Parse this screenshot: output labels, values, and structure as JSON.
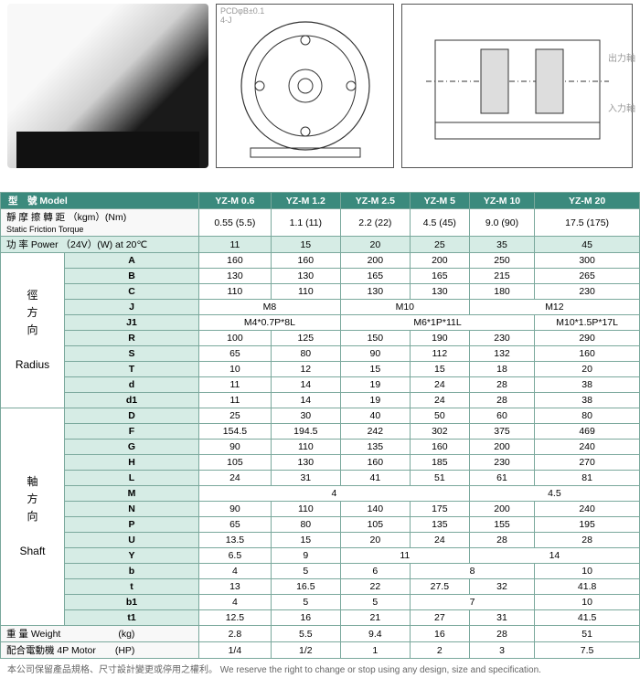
{
  "diagram_labels": {
    "out_shaft": "出力軸",
    "in_shaft": "入力軸",
    "pcd": "PCDφB±0.1\n4-J"
  },
  "header": {
    "model_label": "型　號  Model",
    "models": [
      "YZ-M 0.6",
      "YZ-M 1.2",
      "YZ-M 2.5",
      "YZ-M 5",
      "YZ-M 10",
      "YZ-M 20"
    ]
  },
  "torque_row": {
    "label": "靜 摩 擦 轉 距 （kgm）(Nm)",
    "sub": "Static Friction Torque",
    "vals": [
      "0.55 (5.5)",
      "1.1 (11)",
      "2.2 (22)",
      "4.5 (45)",
      "9.0 (90)",
      "17.5 (175)"
    ]
  },
  "power_row": {
    "label": "功 率  Power （24V）(W) at 20℃",
    "vals": [
      "11",
      "15",
      "20",
      "25",
      "35",
      "45"
    ]
  },
  "radius": {
    "side_label_cn": "徑\n方\n向",
    "side_label_en": "Radius",
    "rows": [
      {
        "p": "A",
        "v": [
          "160",
          "160",
          "200",
          "200",
          "250",
          "300"
        ]
      },
      {
        "p": "B",
        "v": [
          "130",
          "130",
          "165",
          "165",
          "215",
          "265"
        ]
      },
      {
        "p": "C",
        "v": [
          "110",
          "110",
          "130",
          "130",
          "180",
          "230"
        ]
      },
      {
        "p": "J",
        "spans": [
          {
            "t": "M8",
            "c": 2
          },
          {
            "t": "M10",
            "c": 2
          },
          {
            "t": "M12",
            "c": 2
          }
        ]
      },
      {
        "p": "J1",
        "spans": [
          {
            "t": "M4*0.7P*8L",
            "c": 2
          },
          {
            "t": "M6*1P*11L",
            "c": 3
          },
          {
            "t": "M10*1.5P*17L",
            "c": 1
          }
        ]
      },
      {
        "p": "R",
        "v": [
          "100",
          "125",
          "150",
          "190",
          "230",
          "290"
        ]
      },
      {
        "p": "S",
        "v": [
          "65",
          "80",
          "90",
          "112",
          "132",
          "160"
        ]
      },
      {
        "p": "T",
        "v": [
          "10",
          "12",
          "15",
          "15",
          "18",
          "20"
        ]
      },
      {
        "p": "d",
        "v": [
          "11",
          "14",
          "19",
          "24",
          "28",
          "38"
        ]
      },
      {
        "p": "d1",
        "v": [
          "11",
          "14",
          "19",
          "24",
          "28",
          "38"
        ]
      }
    ]
  },
  "shaft": {
    "side_label_cn": "軸\n方\n向",
    "side_label_en": "Shaft",
    "rows": [
      {
        "p": "D",
        "v": [
          "25",
          "30",
          "40",
          "50",
          "60",
          "80"
        ]
      },
      {
        "p": "F",
        "v": [
          "154.5",
          "194.5",
          "242",
          "302",
          "375",
          "469"
        ]
      },
      {
        "p": "G",
        "v": [
          "90",
          "110",
          "135",
          "160",
          "200",
          "240"
        ]
      },
      {
        "p": "H",
        "v": [
          "105",
          "130",
          "160",
          "185",
          "230",
          "270"
        ]
      },
      {
        "p": "L",
        "v": [
          "24",
          "31",
          "41",
          "51",
          "61",
          "81"
        ]
      },
      {
        "p": "M",
        "spans": [
          {
            "t": "4",
            "c": 4
          },
          {
            "t": "4.5",
            "c": 2
          }
        ]
      },
      {
        "p": "N",
        "v": [
          "90",
          "110",
          "140",
          "175",
          "200",
          "240"
        ]
      },
      {
        "p": "P",
        "v": [
          "65",
          "80",
          "105",
          "135",
          "155",
          "195"
        ]
      },
      {
        "p": "U",
        "v": [
          "13.5",
          "15",
          "20",
          "24",
          "28",
          "28"
        ]
      },
      {
        "p": "Y",
        "spans": [
          {
            "t": "6.5",
            "c": 1
          },
          {
            "t": "9",
            "c": 1
          },
          {
            "t": "11",
            "c": 2
          },
          {
            "t": "14",
            "c": 2
          }
        ]
      },
      {
        "p": "b",
        "spans": [
          {
            "t": "4",
            "c": 1
          },
          {
            "t": "5",
            "c": 1
          },
          {
            "t": "6",
            "c": 1
          },
          {
            "t": "8",
            "c": 2
          },
          {
            "t": "10",
            "c": 1
          }
        ]
      },
      {
        "p": "t",
        "v": [
          "13",
          "16.5",
          "22",
          "27.5",
          "32",
          "41.8"
        ]
      },
      {
        "p": "b1",
        "spans": [
          {
            "t": "4",
            "c": 1
          },
          {
            "t": "5",
            "c": 1
          },
          {
            "t": "5",
            "c": 1
          },
          {
            "t": "7",
            "c": 2
          },
          {
            "t": "10",
            "c": 1
          }
        ]
      },
      {
        "p": "t1",
        "v": [
          "12.5",
          "16",
          "21",
          "27",
          "31",
          "41.5"
        ]
      }
    ]
  },
  "weight_row": {
    "label": "重 量  Weight　　　　　　(kg)",
    "vals": [
      "2.8",
      "5.5",
      "9.4",
      "16",
      "28",
      "51"
    ]
  },
  "motor_row": {
    "label": "配合電動機 4P  Motor　　(HP)",
    "vals": [
      "1/4",
      "1/2",
      "1",
      "2",
      "3",
      "7.5"
    ]
  },
  "footnote": "本公司保留產品規格、尺寸設計變更或停用之權利。 We reserve the right to change or stop using any design, size and specification."
}
